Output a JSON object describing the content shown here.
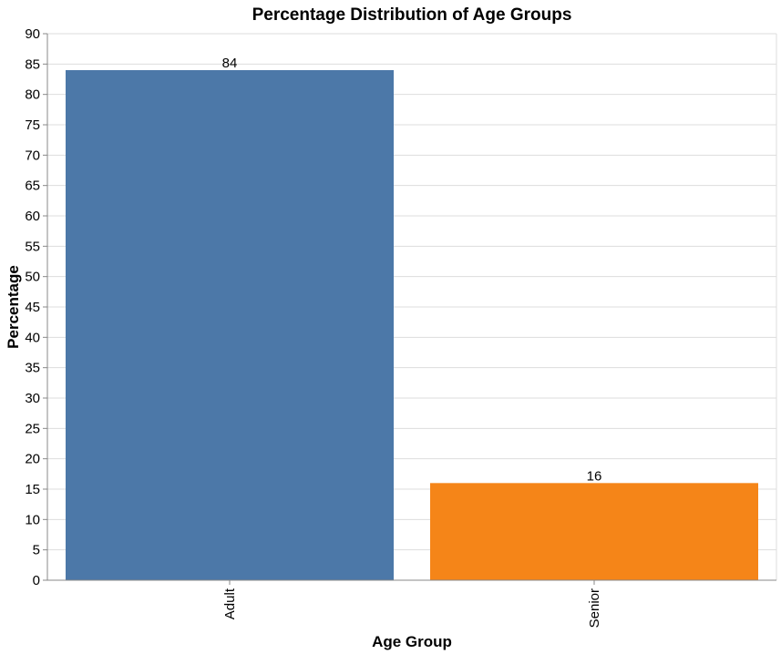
{
  "chart_data": {
    "type": "bar",
    "title": "Percentage Distribution of Age Groups",
    "xlabel": "Age Group",
    "ylabel": "Percentage",
    "categories": [
      "Adult",
      "Senior"
    ],
    "values": [
      84,
      16
    ],
    "data_labels": [
      "84",
      "16"
    ],
    "colors": [
      "#4c78a8",
      "#f58518"
    ],
    "ylim": [
      0,
      90
    ],
    "yticks": [
      0,
      5,
      10,
      15,
      20,
      25,
      30,
      35,
      40,
      45,
      50,
      55,
      60,
      65,
      70,
      75,
      80,
      85,
      90
    ],
    "grid": true,
    "legend": "none"
  }
}
